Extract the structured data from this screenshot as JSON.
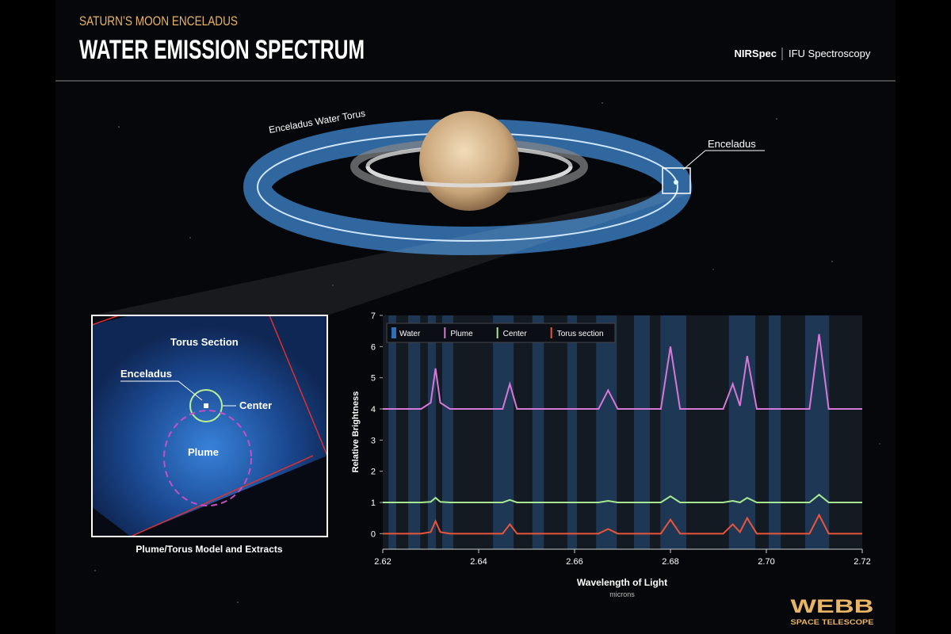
{
  "header": {
    "kicker": "SATURN’S MOON ENCELADUS",
    "title": "WATER EMISSION SPECTRUM",
    "instrument": "NIRSpec",
    "mode": "IFU Spectroscopy"
  },
  "illustration": {
    "torus_label": "Enceladus Water Torus",
    "moon_label": "Enceladus"
  },
  "inset": {
    "region_label": "Torus Section",
    "moon_label": "Enceladus",
    "center_label": "Center",
    "plume_label": "Plume",
    "caption": "Plume/Torus Model and Extracts"
  },
  "chart_data": {
    "type": "line",
    "ylabel": "Relative Brightness",
    "xlabel": "Wavelength of Light",
    "xunit": "microns",
    "xlim": [
      2.62,
      2.72
    ],
    "ylim": [
      -0.5,
      7
    ],
    "xticks": [
      2.62,
      2.64,
      2.66,
      2.68,
      {
        "value": 2.7,
        "label": "2.70"
      },
      2.72
    ],
    "yticks": [
      0,
      1,
      2,
      3,
      4,
      5,
      6,
      7
    ],
    "x": [
      2.62,
      2.628,
      2.63,
      2.631,
      2.632,
      2.634,
      2.645,
      2.6465,
      2.648,
      2.665,
      2.667,
      2.669,
      2.678,
      2.68,
      2.682,
      2.691,
      2.693,
      2.6945,
      2.696,
      2.698,
      2.709,
      2.711,
      2.713,
      2.72
    ],
    "series": [
      {
        "name": "Water",
        "color": "#2f6fb5",
        "bands": [
          [
            2.6212,
            2.6228
          ],
          [
            2.6253,
            2.6278
          ],
          [
            2.6294,
            2.6311
          ],
          [
            2.6324,
            2.6347
          ],
          [
            2.643,
            2.6473
          ],
          [
            2.6512,
            2.6536
          ],
          [
            2.6585,
            2.6605
          ],
          [
            2.6645,
            2.6688
          ],
          [
            2.6724,
            2.6757
          ],
          [
            2.6779,
            2.6833
          ],
          [
            2.6922,
            2.6977
          ],
          [
            2.7005,
            2.703
          ],
          [
            2.7081,
            2.7131
          ]
        ]
      },
      {
        "name": "Plume",
        "color": "#d678d6",
        "values": [
          4,
          4,
          4.2,
          5.3,
          4.2,
          4,
          4,
          4.8,
          4,
          4,
          4.6,
          4,
          4,
          6.0,
          4,
          4,
          4.8,
          4.1,
          5.7,
          4,
          4,
          6.4,
          4,
          4
        ]
      },
      {
        "name": "Center",
        "color": "#a8e890",
        "values": [
          1,
          1,
          1.02,
          1.15,
          1.02,
          1,
          1,
          1.08,
          1,
          1,
          1.05,
          1,
          1,
          1.2,
          1,
          1,
          1.05,
          1,
          1.15,
          1,
          1,
          1.25,
          1,
          1
        ]
      },
      {
        "name": "Torus section",
        "color": "#e8553a",
        "values": [
          0,
          0,
          0.05,
          0.4,
          0.05,
          0,
          0,
          0.3,
          0,
          0,
          0.15,
          0,
          0,
          0.45,
          0,
          0,
          0.3,
          0.05,
          0.5,
          0,
          0,
          0.6,
          0,
          0
        ]
      }
    ]
  },
  "logo": {
    "name": "WEBB",
    "sub": "SPACE TELESCOPE"
  }
}
